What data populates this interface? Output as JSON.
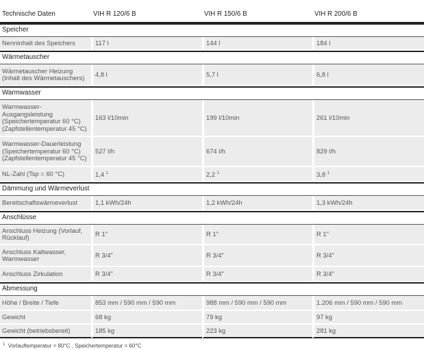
{
  "header": [
    "Technische Daten",
    "VIH R 120/6 B",
    "VIH R 150/6 B",
    "VIH R 200/6 B"
  ],
  "sections": [
    {
      "title": "Speicher",
      "rows": [
        {
          "label": "Nenninhalt des Speichers",
          "values": [
            "117 l",
            "144 l",
            "184 l"
          ]
        }
      ]
    },
    {
      "title": "Wärmetauscher",
      "rows": [
        {
          "label": "Wärmetauscher Heizung (Inhalt des Wärmetauschers)",
          "values": [
            "4,8 l",
            "5,7 l",
            "6,8 l"
          ]
        }
      ]
    },
    {
      "title": "Warmwasser",
      "rows": [
        {
          "label": "Warmwasser-Ausgangsleistung (Speichertemperatur 60 °C) (Zapfstellentemperatur 45 °C)",
          "values": [
            "163 l/10min",
            "199 l/10min",
            "261 l/10min"
          ]
        },
        {
          "label": "Warmwasser-Dauerleistung (Speichertemperatur 60 °C) (Zapfstellentemperatur 45 °C)",
          "values": [
            "527 l/h",
            "674 l/h",
            "829 l/h"
          ]
        },
        {
          "label": "NL-Zahl (Tsp = 60 °C)",
          "values": [
            "1,4",
            "2,2",
            "3,8"
          ],
          "sup": "1"
        }
      ]
    },
    {
      "title": "Dämmung und Wärmeverlust",
      "rows": [
        {
          "label": "Bereitschaftswärmeverlust",
          "values": [
            "1,1 kWh/24h",
            "1,2 kWh/24h",
            "1,3 kWh/24h"
          ]
        }
      ]
    },
    {
      "title": "Anschlüsse",
      "rows": [
        {
          "label": "Anschluss Heizung (Vorlauf, Rücklauf)",
          "values": [
            "R 1\"",
            "R 1\"",
            "R 1\""
          ]
        },
        {
          "label": "Anschluss Kaltwasser, Warmwasser",
          "values": [
            "R 3/4\"",
            "R 3/4\"",
            "R 3/4\""
          ]
        },
        {
          "label": "Anschluss Zirkulation",
          "values": [
            "R 3/4\"",
            "R 3/4\"",
            "R 3/4\""
          ]
        }
      ]
    },
    {
      "title": "Abmessung",
      "rows": [
        {
          "label": "Höhe / Breite / Tiefe",
          "values": [
            "853 mm / 590 mm / 590 mm",
            "988 mm / 590 mm / 590 mm",
            "1.206 mm / 590 mm / 590 mm"
          ]
        },
        {
          "label": "Gewicht",
          "values": [
            "68 kg",
            "79 kg",
            "97 kg"
          ]
        },
        {
          "label": "Gewicht (betriebsbereit)",
          "values": [
            "185 kg",
            "223 kg",
            "281 kg"
          ]
        }
      ]
    }
  ],
  "footnote": {
    "mark": "1",
    "text": "Vorlauftemperatur = 80°C , Speichertemperatur = 60°C"
  }
}
